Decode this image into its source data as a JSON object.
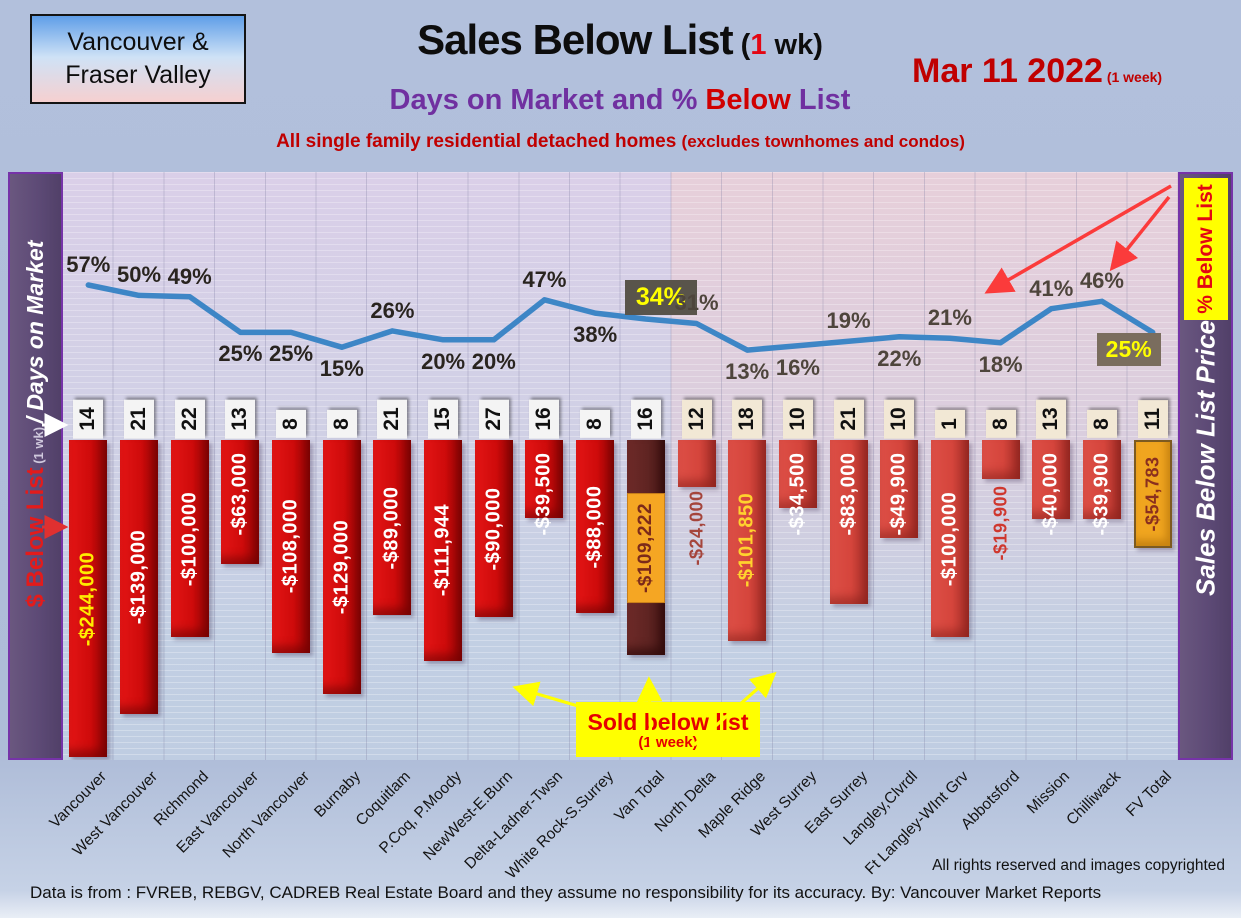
{
  "header": {
    "region_box_line1": "Vancouver &",
    "region_box_line2": "Fraser Valley",
    "title": "Sales Below List",
    "title_paren_open": " (",
    "title_one": "1",
    "title_paren_rest": " wk)",
    "date": "Mar 11  2022",
    "date_note": " (1 week)",
    "subtitle_pre": "Days on Market and % ",
    "subtitle_red": "Below",
    "subtitle_post": " List",
    "tagline": "All single family residential detached homes ",
    "tagline_note": "(excludes townhomes and condos)"
  },
  "left_sidebar": {
    "dollar": "$ Below List",
    "wk": " (1 wk)  ",
    "days": "/ Days on Market"
  },
  "right_sidebar": {
    "pct_box": "% Below List",
    "label": "Sales Below List Price"
  },
  "callout": {
    "line1": "Sold below list",
    "line2": "(1 week)"
  },
  "footer": {
    "rights": "All rights reserved and  images copyrighted",
    "source": "Data is from : FVREB, REBGV, CADREB Real Estate Board and they assume no responsibility for its accuracy. By: Vancouver Market Reports"
  },
  "colors": {
    "accent_red": "#c00000",
    "subtitle_purple": "#7030a0",
    "sidebar_purple": "#5d4a76",
    "bar_van": "#cf0b0b",
    "bar_van_total": "#5f2422",
    "bar_fv": "#d5453c",
    "bar_fv_total": "#f0a51f",
    "line_blue": "#3d86c6",
    "highlight_yellow": "#ffff00",
    "pct_box_gray": "#59544b"
  },
  "chart_data": {
    "type": "bar+line",
    "title": "Sales Below List (1 wk) - Days on Market and % Below List",
    "grid": true,
    "legend_position": "none",
    "van_group_count": 12,
    "categories": [
      "Vancouver",
      "West Vancouver",
      "Richmond",
      "East Vancouver",
      "North Vancouver",
      "Burnaby",
      "Coquitlam",
      "P.Coq, P.Moody",
      "NewWest-E.Burn",
      "Delta-Ladner-Twsn",
      "White Rock-S.Surrey",
      "Van Total",
      "North Delta",
      "Maple Ridge",
      "West Surrey",
      "East Surrey",
      "Langley,Clvrdl",
      "Ft Langley-WInt Grv",
      "Abbotsford",
      "Mission",
      "Chilliwack",
      "FV Total"
    ],
    "series": [
      {
        "name": "$ Below List",
        "type": "bar",
        "values": [
          -244000,
          -139000,
          -100000,
          -63000,
          -108000,
          -129000,
          -89000,
          -111944,
          -90000,
          -39500,
          -88000,
          -109222,
          -24000,
          -101850,
          -34500,
          -83000,
          -49900,
          -100000,
          -19900,
          -40000,
          -39900,
          -54783
        ],
        "labels": [
          "-$244,000",
          "-$139,000",
          "-$100,000",
          "-$63,000",
          "-$108,000",
          "-$129,000",
          "-$89,000",
          "-$111,944",
          "-$90,000",
          "-$39,500",
          "-$88,000",
          "-$109,222",
          "-$24,000",
          "-$101,850",
          "-$34,500",
          "-$83,000",
          "-$49,900",
          "-$100,000",
          "-$19,900",
          "-$40,000",
          "-$39,900",
          "-$54,783"
        ]
      },
      {
        "name": "Days on Market",
        "type": "labels",
        "values": [
          14,
          21,
          22,
          13,
          8,
          8,
          21,
          15,
          27,
          16,
          8,
          16,
          12,
          18,
          10,
          21,
          10,
          1,
          8,
          13,
          8,
          11
        ]
      },
      {
        "name": "% Below List",
        "type": "line",
        "values": [
          57,
          50,
          49,
          25,
          25,
          15,
          26,
          20,
          20,
          47,
          38,
          34,
          31,
          13,
          16,
          19,
          22,
          21,
          18,
          41,
          46,
          25
        ],
        "labels": [
          "57%",
          "50%",
          "49%",
          "25%",
          "25%",
          "15%",
          "26%",
          "20%",
          "20%",
          "47%",
          "38%",
          "34%",
          "31%",
          "13%",
          "16%",
          "19%",
          "22%",
          "21%",
          "18%",
          "41%",
          "46%",
          "25%"
        ]
      }
    ],
    "pct_label_positions": [
      "above",
      "above",
      "above",
      "below",
      "below",
      "below",
      "above",
      "below",
      "below",
      "above",
      "below",
      "box",
      "above",
      "below",
      "below",
      "above",
      "below",
      "above",
      "below",
      "above",
      "above",
      "box"
    ],
    "value_label_styles": [
      "yellow",
      "white",
      "white",
      "white",
      "white",
      "white",
      "white",
      "white",
      "white",
      "white",
      "white",
      "boxed",
      "outside-dim",
      "gold",
      "white",
      "white",
      "white",
      "white",
      "outside-bright",
      "white",
      "white",
      "total"
    ]
  }
}
